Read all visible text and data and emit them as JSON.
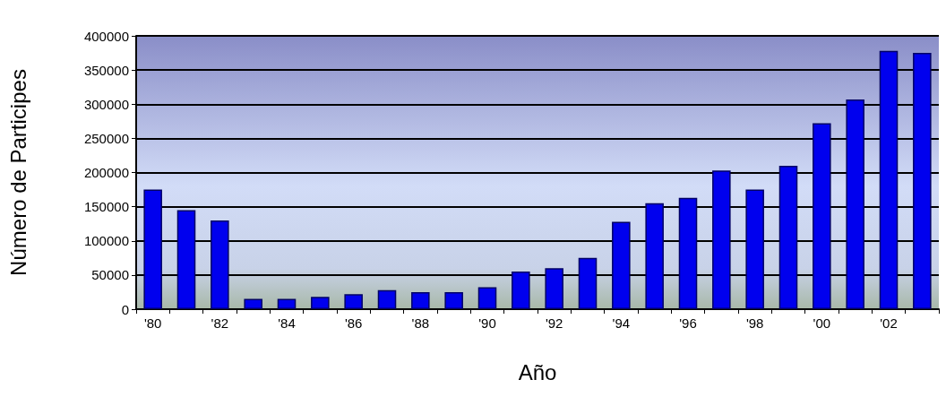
{
  "chart_data": {
    "type": "bar",
    "xlabel": "Año",
    "ylabel": "Número de Participes",
    "categories": [
      "'80",
      null,
      "'82",
      null,
      "'84",
      null,
      "'86",
      null,
      "'88",
      null,
      "'90",
      null,
      "'92",
      null,
      "'94",
      null,
      "'96",
      null,
      "'98",
      null,
      "'00",
      null,
      "'02",
      null
    ],
    "values": [
      175000,
      145000,
      130000,
      15000,
      15000,
      18000,
      22000,
      28000,
      25000,
      25000,
      32000,
      55000,
      60000,
      75000,
      128000,
      155000,
      163000,
      203000,
      175000,
      210000,
      272000,
      307000,
      378000,
      375000
    ],
    "color": "#0000ee",
    "ylim": [
      0,
      400000
    ],
    "yticks": [
      0,
      50000,
      100000,
      150000,
      200000,
      250000,
      300000,
      350000,
      400000
    ],
    "grid": "y"
  }
}
